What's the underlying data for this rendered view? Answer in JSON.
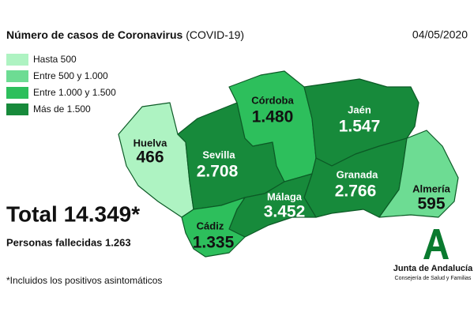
{
  "header": {
    "title": "Número de casos de Coronavirus",
    "subtitle": "(COVID-19)",
    "date": "04/05/2020"
  },
  "legend": [
    {
      "label": "Hasta 500",
      "color": "#aef3c2"
    },
    {
      "label": "Entre 500 y 1.000",
      "color": "#6ddc93"
    },
    {
      "label": "Entre 1.000 y 1.500",
      "color": "#2dbf5c"
    },
    {
      "label": "Más de 1.500",
      "color": "#178a3b"
    }
  ],
  "provinces": [
    {
      "name": "Huelva",
      "cases": "466",
      "color": "#aef3c2"
    },
    {
      "name": "Sevilla",
      "cases": "2.708",
      "color": "#178a3b"
    },
    {
      "name": "Córdoba",
      "cases": "1.480",
      "color": "#2dbf5c"
    },
    {
      "name": "Jaén",
      "cases": "1.547",
      "color": "#178a3b"
    },
    {
      "name": "Granada",
      "cases": "2.766",
      "color": "#178a3b"
    },
    {
      "name": "Almería",
      "cases": "595",
      "color": "#6ddc93"
    },
    {
      "name": "Málaga",
      "cases": "3.452",
      "color": "#178a3b"
    },
    {
      "name": "Cádiz",
      "cases": "1.335",
      "color": "#2dbf5c"
    }
  ],
  "summary": {
    "total": "Total 14.349*",
    "deaths": "Personas fallecidas 1.263",
    "footnote": "*Incluidos los positivos asintomáticos"
  },
  "logo": {
    "name": "Junta de Andalucía",
    "department": "Consejería de Salud y Familias"
  }
}
